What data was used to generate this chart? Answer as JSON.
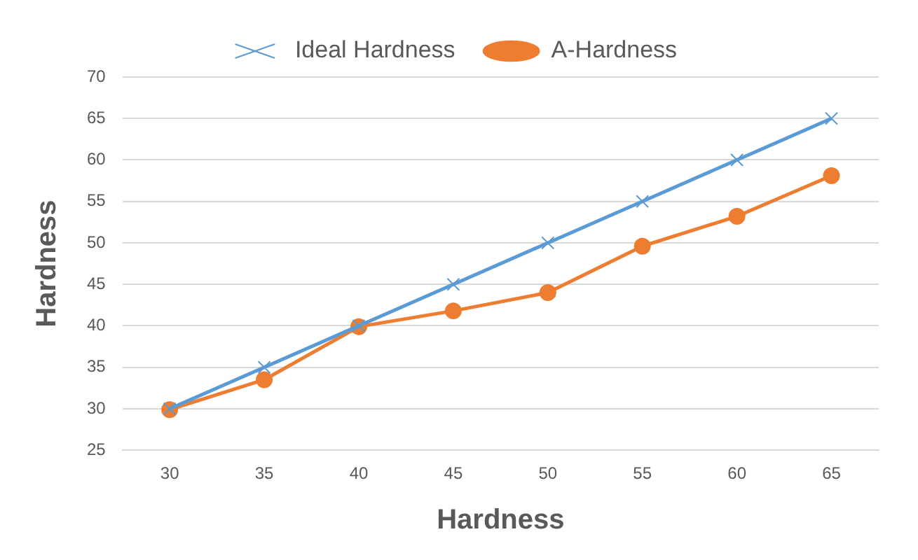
{
  "chart_data": {
    "type": "line",
    "xlabel": "Hardness",
    "ylabel": "Hardness",
    "categories": [
      "30",
      "35",
      "40",
      "45",
      "50",
      "55",
      "60",
      "65"
    ],
    "series": [
      {
        "name": "Ideal Hardness",
        "color": "#5b9bd5",
        "marker": "cross",
        "values": [
          30,
          35,
          40,
          45,
          50,
          55,
          60,
          65
        ]
      },
      {
        "name": "A-Hardness",
        "color": "#ed7d31",
        "marker": "circle",
        "values": [
          29.9,
          33.5,
          39.9,
          41.8,
          44,
          49.6,
          53.2,
          58.1
        ]
      }
    ],
    "ylim": [
      25,
      70
    ],
    "yticks": [
      25,
      30,
      35,
      40,
      45,
      50,
      55,
      60,
      65,
      70
    ],
    "grid": "y",
    "legend": "top"
  }
}
